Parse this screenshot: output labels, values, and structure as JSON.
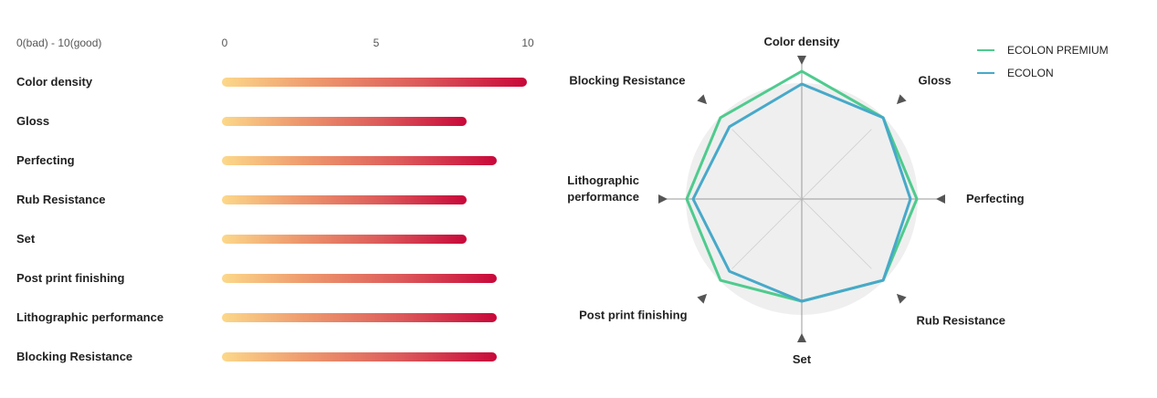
{
  "chart_data": [
    {
      "type": "bar",
      "orientation": "horizontal",
      "scale_caption": "0(bad) - 10(good)",
      "ticks": [
        "0",
        "5",
        "10"
      ],
      "xlim": [
        0,
        10
      ],
      "categories": [
        "Color density",
        "Gloss",
        "Perfecting",
        "Rub Resistance",
        "Set",
        "Post print finishing",
        "Lithographic performance",
        "Blocking Resistance"
      ],
      "values": [
        10,
        8,
        9,
        8,
        8,
        9,
        9,
        9
      ],
      "colors": {
        "start": "#fcd88a",
        "end": "#c8083a"
      }
    },
    {
      "type": "radar",
      "axes": [
        "Color density",
        "Gloss",
        "Perfecting",
        "Rub Resistance",
        "Set",
        "Post print finishing",
        "Lithographic performance",
        "Blocking Resistance"
      ],
      "axis_labels": [
        [
          "Color density"
        ],
        [
          "Gloss"
        ],
        [
          "Perfecting"
        ],
        [
          "Rub Resistance"
        ],
        [
          "Set"
        ],
        [
          "Post print finishing"
        ],
        [
          "Lithographic",
          "performance"
        ],
        [
          "Blocking Resistance"
        ]
      ],
      "range": [
        0,
        10
      ],
      "series": [
        {
          "name": "ECOLON PREMIUM",
          "color": "#4ecb8e",
          "values": [
            10,
            9,
            9,
            9,
            8,
            9,
            9,
            9
          ]
        },
        {
          "name": "ECOLON",
          "color": "#47a9c9",
          "values": [
            9,
            9,
            8.5,
            9,
            8,
            8,
            8.5,
            8
          ]
        }
      ],
      "legend_position": "top-right",
      "background_color": "#efefef"
    }
  ]
}
